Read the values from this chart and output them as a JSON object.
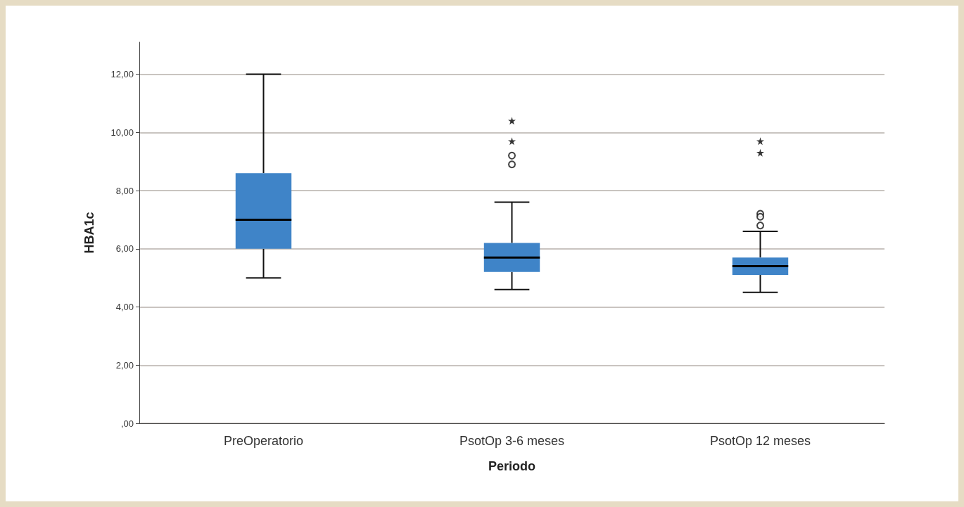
{
  "chart_data": {
    "type": "box",
    "xlabel": "Periodo",
    "ylabel": "HBA1c",
    "categories": [
      "PreOperatorio",
      "PsotOp 3-6 meses",
      "PsotOp 12 meses"
    ],
    "ylim": [
      0,
      13.1
    ],
    "yticks": [
      {
        "value": 0,
        "label": ",00"
      },
      {
        "value": 2,
        "label": "2,00"
      },
      {
        "value": 4,
        "label": "4,00"
      },
      {
        "value": 6,
        "label": "6,00"
      },
      {
        "value": 8,
        "label": "8,00"
      },
      {
        "value": 10,
        "label": "10,00"
      },
      {
        "value": 12,
        "label": "12,00"
      }
    ],
    "grid": "y",
    "series": [
      {
        "type": "box",
        "color": "#3f84c8",
        "boxes": [
          {
            "low": 5.0,
            "q1": 6.0,
            "median": 7.0,
            "q3": 8.6,
            "high": 12.0
          },
          {
            "low": 4.6,
            "q1": 5.2,
            "median": 5.7,
            "q3": 6.2,
            "high": 7.6,
            "outliers": [
              9.2,
              8.9
            ]
          },
          {
            "low": 4.5,
            "q1": 5.1,
            "median": 5.4,
            "q3": 5.7,
            "high": 6.6,
            "outliers": [
              7.2,
              7.1,
              6.8
            ]
          }
        ]
      },
      {
        "type": "scatter",
        "marker": "star",
        "color": "#000000",
        "x": [
          "PsotOp 3-6 meses",
          "PsotOp 3-6 meses",
          "PsotOp 12 meses",
          "PsotOp 12 meses"
        ],
        "values": [
          10.4,
          9.7,
          9.7,
          9.3
        ]
      }
    ]
  }
}
